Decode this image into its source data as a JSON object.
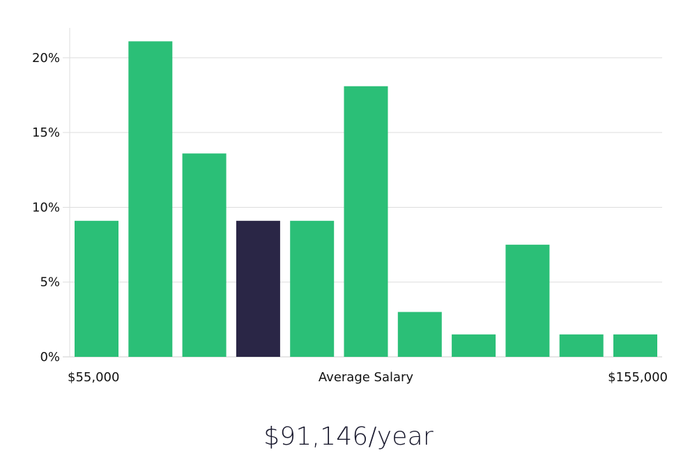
{
  "chart_data": {
    "type": "bar",
    "title": "",
    "xlabel": "Average Salary",
    "ylabel": "",
    "x_min_label": "$55,000",
    "x_max_label": "$155,000",
    "values": [
      9.1,
      21.1,
      13.6,
      9.1,
      9.1,
      18.1,
      3.0,
      1.5,
      7.5,
      1.5,
      1.5
    ],
    "highlight_index": 3,
    "ylim": [
      0,
      22
    ],
    "yticks": [
      0,
      5,
      10,
      15,
      20
    ],
    "ytick_labels": [
      "0%",
      "5%",
      "10%",
      "15%",
      "20%"
    ],
    "grid": true,
    "colors": {
      "bar": "#2bbf77",
      "highlight": "#2a2646",
      "grid": "#dddddd",
      "axis": "#cccccc"
    }
  },
  "salary_summary": "$91,146/year"
}
